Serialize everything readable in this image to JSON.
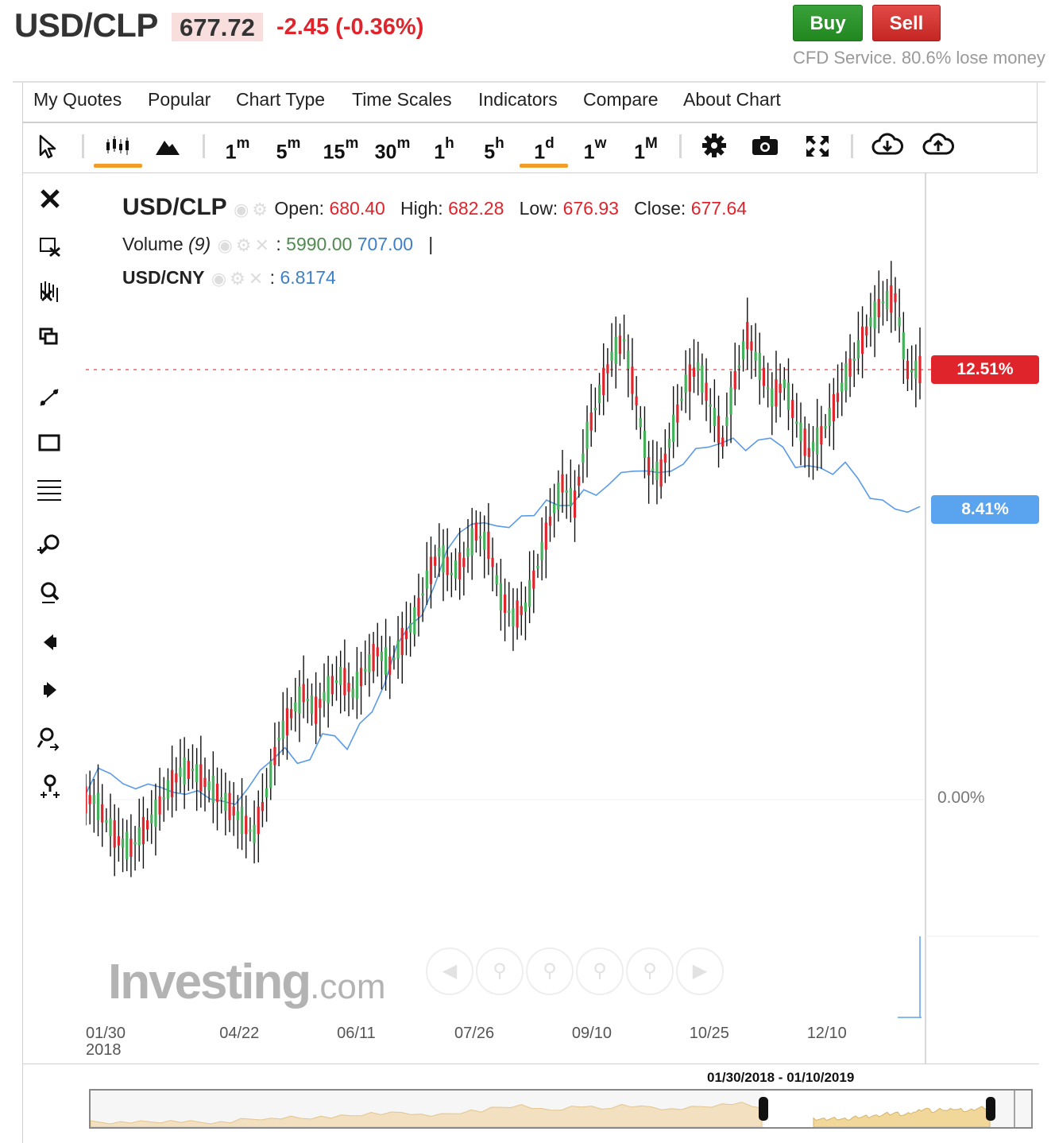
{
  "header": {
    "symbol": "USD/CLP",
    "price": "677.72",
    "change": "-2.45 (-0.36%)",
    "buy_label": "Buy",
    "sell_label": "Sell",
    "cfd_note": "CFD Service. 80.6% lose money"
  },
  "menu": [
    "My Quotes",
    "Popular",
    "Chart Type",
    "Time Scales",
    "Indicators",
    "Compare",
    "About Chart"
  ],
  "toolbar": {
    "timeframes": [
      {
        "num": "1",
        "unit": "m"
      },
      {
        "num": "5",
        "unit": "m"
      },
      {
        "num": "15",
        "unit": "m"
      },
      {
        "num": "30",
        "unit": "m"
      },
      {
        "num": "1",
        "unit": "h"
      },
      {
        "num": "5",
        "unit": "h"
      },
      {
        "num": "1",
        "unit": "d"
      },
      {
        "num": "1",
        "unit": "w"
      },
      {
        "num": "1",
        "unit": "M"
      }
    ],
    "selected_timeframe": "1d",
    "selected_chart_type": "candlestick",
    "icons": [
      "cursor-icon",
      "candlestick-icon",
      "mountain-icon",
      "gear-icon",
      "camera-icon",
      "fullscreen-icon",
      "cloud-download-icon",
      "cloud-upload-icon"
    ]
  },
  "side_tools": [
    "close-icon",
    "remove-drawing-icon",
    "remove-all-icon",
    "layers-icon",
    "trendline-icon",
    "rectangle-icon",
    "fibonacci-icon",
    "zoom-in-icon",
    "zoom-out-icon",
    "scroll-left-icon",
    "scroll-right-icon",
    "zoom-in-more-icon",
    "reset-zoom-icon"
  ],
  "legend": {
    "symbol": "USD/CLP",
    "open_label": "Open:",
    "open": "680.40",
    "high_label": "High:",
    "high": "682.28",
    "low_label": "Low:",
    "low": "676.93",
    "close_label": "Close:",
    "close": "677.64",
    "volume_label": "Volume",
    "volume_period": "(9)",
    "volume_value_1": "5990.00",
    "volume_value_2": "707.00",
    "volume_sep": "|",
    "compare_symbol": "USD/CNY",
    "compare_value": "6.8174"
  },
  "price_badges": {
    "usdclp": "12.51%",
    "usdcny": "8.41%",
    "zero": "0.00%"
  },
  "colors": {
    "up": "#43b15a",
    "down": "#e0242c",
    "compare_line": "#5a9be8",
    "badge_red": "#e0242c",
    "badge_blue": "#5aa3ef",
    "accent": "#f29d2a"
  },
  "watermark": {
    "brand": "Investing",
    "suffix": ".com"
  },
  "range_label": "01/30/2018 - 01/10/2019",
  "chart_data": {
    "type": "line",
    "title": "USD/CLP",
    "xlabel": "",
    "ylabel": "",
    "y_unit": "% change",
    "ylim": [
      -4,
      17
    ],
    "x_ticks": [
      "01/30\n2018",
      "04/22",
      "06/11",
      "07/26",
      "09/10",
      "10/25",
      "12/10"
    ],
    "x_tick_positions": [
      0,
      13,
      23,
      33,
      43,
      53,
      63
    ],
    "x_points": 72,
    "series": [
      {
        "name": "USD/CLP",
        "style": "candlestick",
        "values": [
          0.0,
          -0.6,
          -1.2,
          -1.4,
          -0.9,
          -0.4,
          0.3,
          0.8,
          0.9,
          0.5,
          0.2,
          -0.2,
          -0.6,
          -1.0,
          0.2,
          1.8,
          2.5,
          3.1,
          2.6,
          3.2,
          3.6,
          3.1,
          3.8,
          4.3,
          3.9,
          4.6,
          5.2,
          6.4,
          7.2,
          6.6,
          6.9,
          7.8,
          7.4,
          5.9,
          5.3,
          5.6,
          6.8,
          8.1,
          9.2,
          8.6,
          10.6,
          11.8,
          12.9,
          13.4,
          11.6,
          9.7,
          9.5,
          10.8,
          12.1,
          12.6,
          11.5,
          10.4,
          12.2,
          13.5,
          12.6,
          11.7,
          12.1,
          11.0,
          10.1,
          10.6,
          11.4,
          12.3,
          13.1,
          13.9,
          14.5,
          14.6,
          12.5,
          12.51
        ],
        "last": 12.51
      },
      {
        "name": "USD/CNY",
        "style": "line",
        "values": [
          0.3,
          0.8,
          0.8,
          0.6,
          0.2,
          0.5,
          0.5,
          0.1,
          0.2,
          0.4,
          -0.1,
          0.0,
          0.0,
          0.2,
          0.9,
          1.3,
          1.4,
          1.1,
          1.3,
          1.8,
          1.9,
          1.6,
          2.1,
          2.6,
          3.5,
          4.4,
          5.1,
          5.5,
          6.1,
          7.3,
          7.9,
          7.9,
          8.1,
          8.1,
          7.8,
          8.3,
          8.4,
          8.6,
          8.6,
          8.7,
          8.9,
          8.9,
          9.3,
          9.4,
          9.6,
          9.7,
          9.4,
          9.6,
          9.9,
          10.1,
          10.3,
          10.5,
          10.4,
          10.2,
          10.6,
          10.4,
          10.3,
          9.8,
          9.6,
          9.7,
          9.6,
          9.7,
          9.4,
          8.9,
          8.6,
          8.5,
          8.5,
          8.41
        ],
        "last": 8.41
      }
    ],
    "reference_line": 12.51,
    "grid": false,
    "legend": "top-left"
  }
}
